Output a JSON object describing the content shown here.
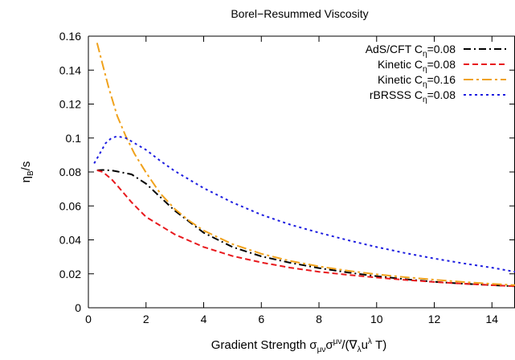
{
  "chart_data": {
    "type": "line",
    "title": "Borel−Resummed Viscosity",
    "xlabel": {
      "base": "Gradient Strength σ",
      "sub1": "μν",
      "mid1": "σ",
      "sup1": "μν",
      "mid2": "/(∇",
      "sub2": "λ",
      "mid3": "u",
      "sup2": "λ",
      "tail": " T)"
    },
    "ylabel": {
      "base": "η",
      "sub": "B",
      "tail": "/s"
    },
    "xlim": [
      0,
      14.8
    ],
    "ylim": [
      0,
      0.16
    ],
    "xticks": [
      0,
      2,
      4,
      6,
      8,
      10,
      12,
      14
    ],
    "yticks": [
      0,
      0.02,
      0.04,
      0.06,
      0.08,
      0.1,
      0.12,
      0.14,
      0.16
    ],
    "ytick_labels": [
      "0",
      "0.02",
      "0.04",
      "0.06",
      "0.08",
      "0.1",
      "0.12",
      "0.14",
      "0.16"
    ],
    "grid": false,
    "legend_position": "top-right",
    "series": [
      {
        "name": "AdS/CFT Cη=0.08",
        "legend": {
          "pre": "AdS/CFT C",
          "sub": "η",
          "post": "=0.08"
        },
        "color": "#000000",
        "dash": "9,4,2,4",
        "x": [
          0.3,
          0.5,
          0.8,
          1.0,
          1.5,
          2.0,
          3.0,
          4.0,
          5.0,
          6.0,
          7.0,
          8.0,
          9.0,
          10.0,
          11.0,
          12.0,
          13.0,
          14.0,
          14.8
        ],
        "y": [
          0.081,
          0.0812,
          0.0809,
          0.0803,
          0.0786,
          0.0731,
          0.0572,
          0.0442,
          0.0358,
          0.0303,
          0.0265,
          0.0234,
          0.0208,
          0.0186,
          0.0168,
          0.0153,
          0.0142,
          0.0133,
          0.0127
        ]
      },
      {
        "name": "Kinetic Cη=0.08",
        "legend": {
          "pre": "Kinetic C",
          "sub": "η",
          "post": "=0.08"
        },
        "color": "#e8191d",
        "dash": "7,4",
        "x": [
          0.3,
          0.5,
          0.8,
          1.0,
          1.5,
          2.0,
          3.0,
          4.0,
          5.0,
          6.0,
          7.0,
          8.0,
          9.0,
          10.0,
          11.0,
          12.0,
          13.0,
          14.0,
          14.8
        ],
        "y": [
          0.081,
          0.08,
          0.0758,
          0.072,
          0.0621,
          0.0535,
          0.0432,
          0.0358,
          0.0305,
          0.0267,
          0.0236,
          0.0212,
          0.0194,
          0.0178,
          0.0164,
          0.0152,
          0.0142,
          0.0133,
          0.0127
        ]
      },
      {
        "name": "Kinetic Cη=0.16",
        "legend": {
          "pre": "Kinetic C",
          "sub": "η",
          "post": "=0.16"
        },
        "color": "#f0a21c",
        "dash": "12,4,3,4",
        "x": [
          0.3,
          0.5,
          0.7,
          1.0,
          1.3,
          1.6,
          2.0,
          2.5,
          3.0,
          3.5,
          4.0,
          5.0,
          6.0,
          7.0,
          8.0,
          9.0,
          10.0,
          11.0,
          12.0,
          13.0,
          14.0,
          14.8
        ],
        "y": [
          0.156,
          0.143,
          0.13,
          0.113,
          0.101,
          0.0907,
          0.0796,
          0.0672,
          0.0582,
          0.0512,
          0.0455,
          0.0375,
          0.0318,
          0.0276,
          0.0244,
          0.0218,
          0.0197,
          0.018,
          0.0165,
          0.0152,
          0.0141,
          0.0133
        ]
      },
      {
        "name": "rBRSSS Cη=0.08",
        "legend": {
          "pre": "rBRSSS C",
          "sub": "η",
          "post": "=0.08"
        },
        "color": "#1c1ce0",
        "dash": "3,4",
        "x": [
          0.2,
          0.4,
          0.6,
          0.8,
          1.0,
          1.3,
          1.6,
          2.0,
          2.5,
          3.0,
          3.5,
          4.0,
          5.0,
          6.0,
          7.0,
          8.0,
          9.0,
          10.0,
          11.0,
          12.0,
          13.0,
          14.0,
          14.8
        ],
        "y": [
          0.085,
          0.091,
          0.097,
          0.1,
          0.101,
          0.1,
          0.097,
          0.093,
          0.0865,
          0.0805,
          0.0755,
          0.0705,
          0.062,
          0.0548,
          0.049,
          0.0442,
          0.0398,
          0.0358,
          0.0322,
          0.029,
          0.0262,
          0.0236,
          0.0212
        ]
      }
    ]
  }
}
